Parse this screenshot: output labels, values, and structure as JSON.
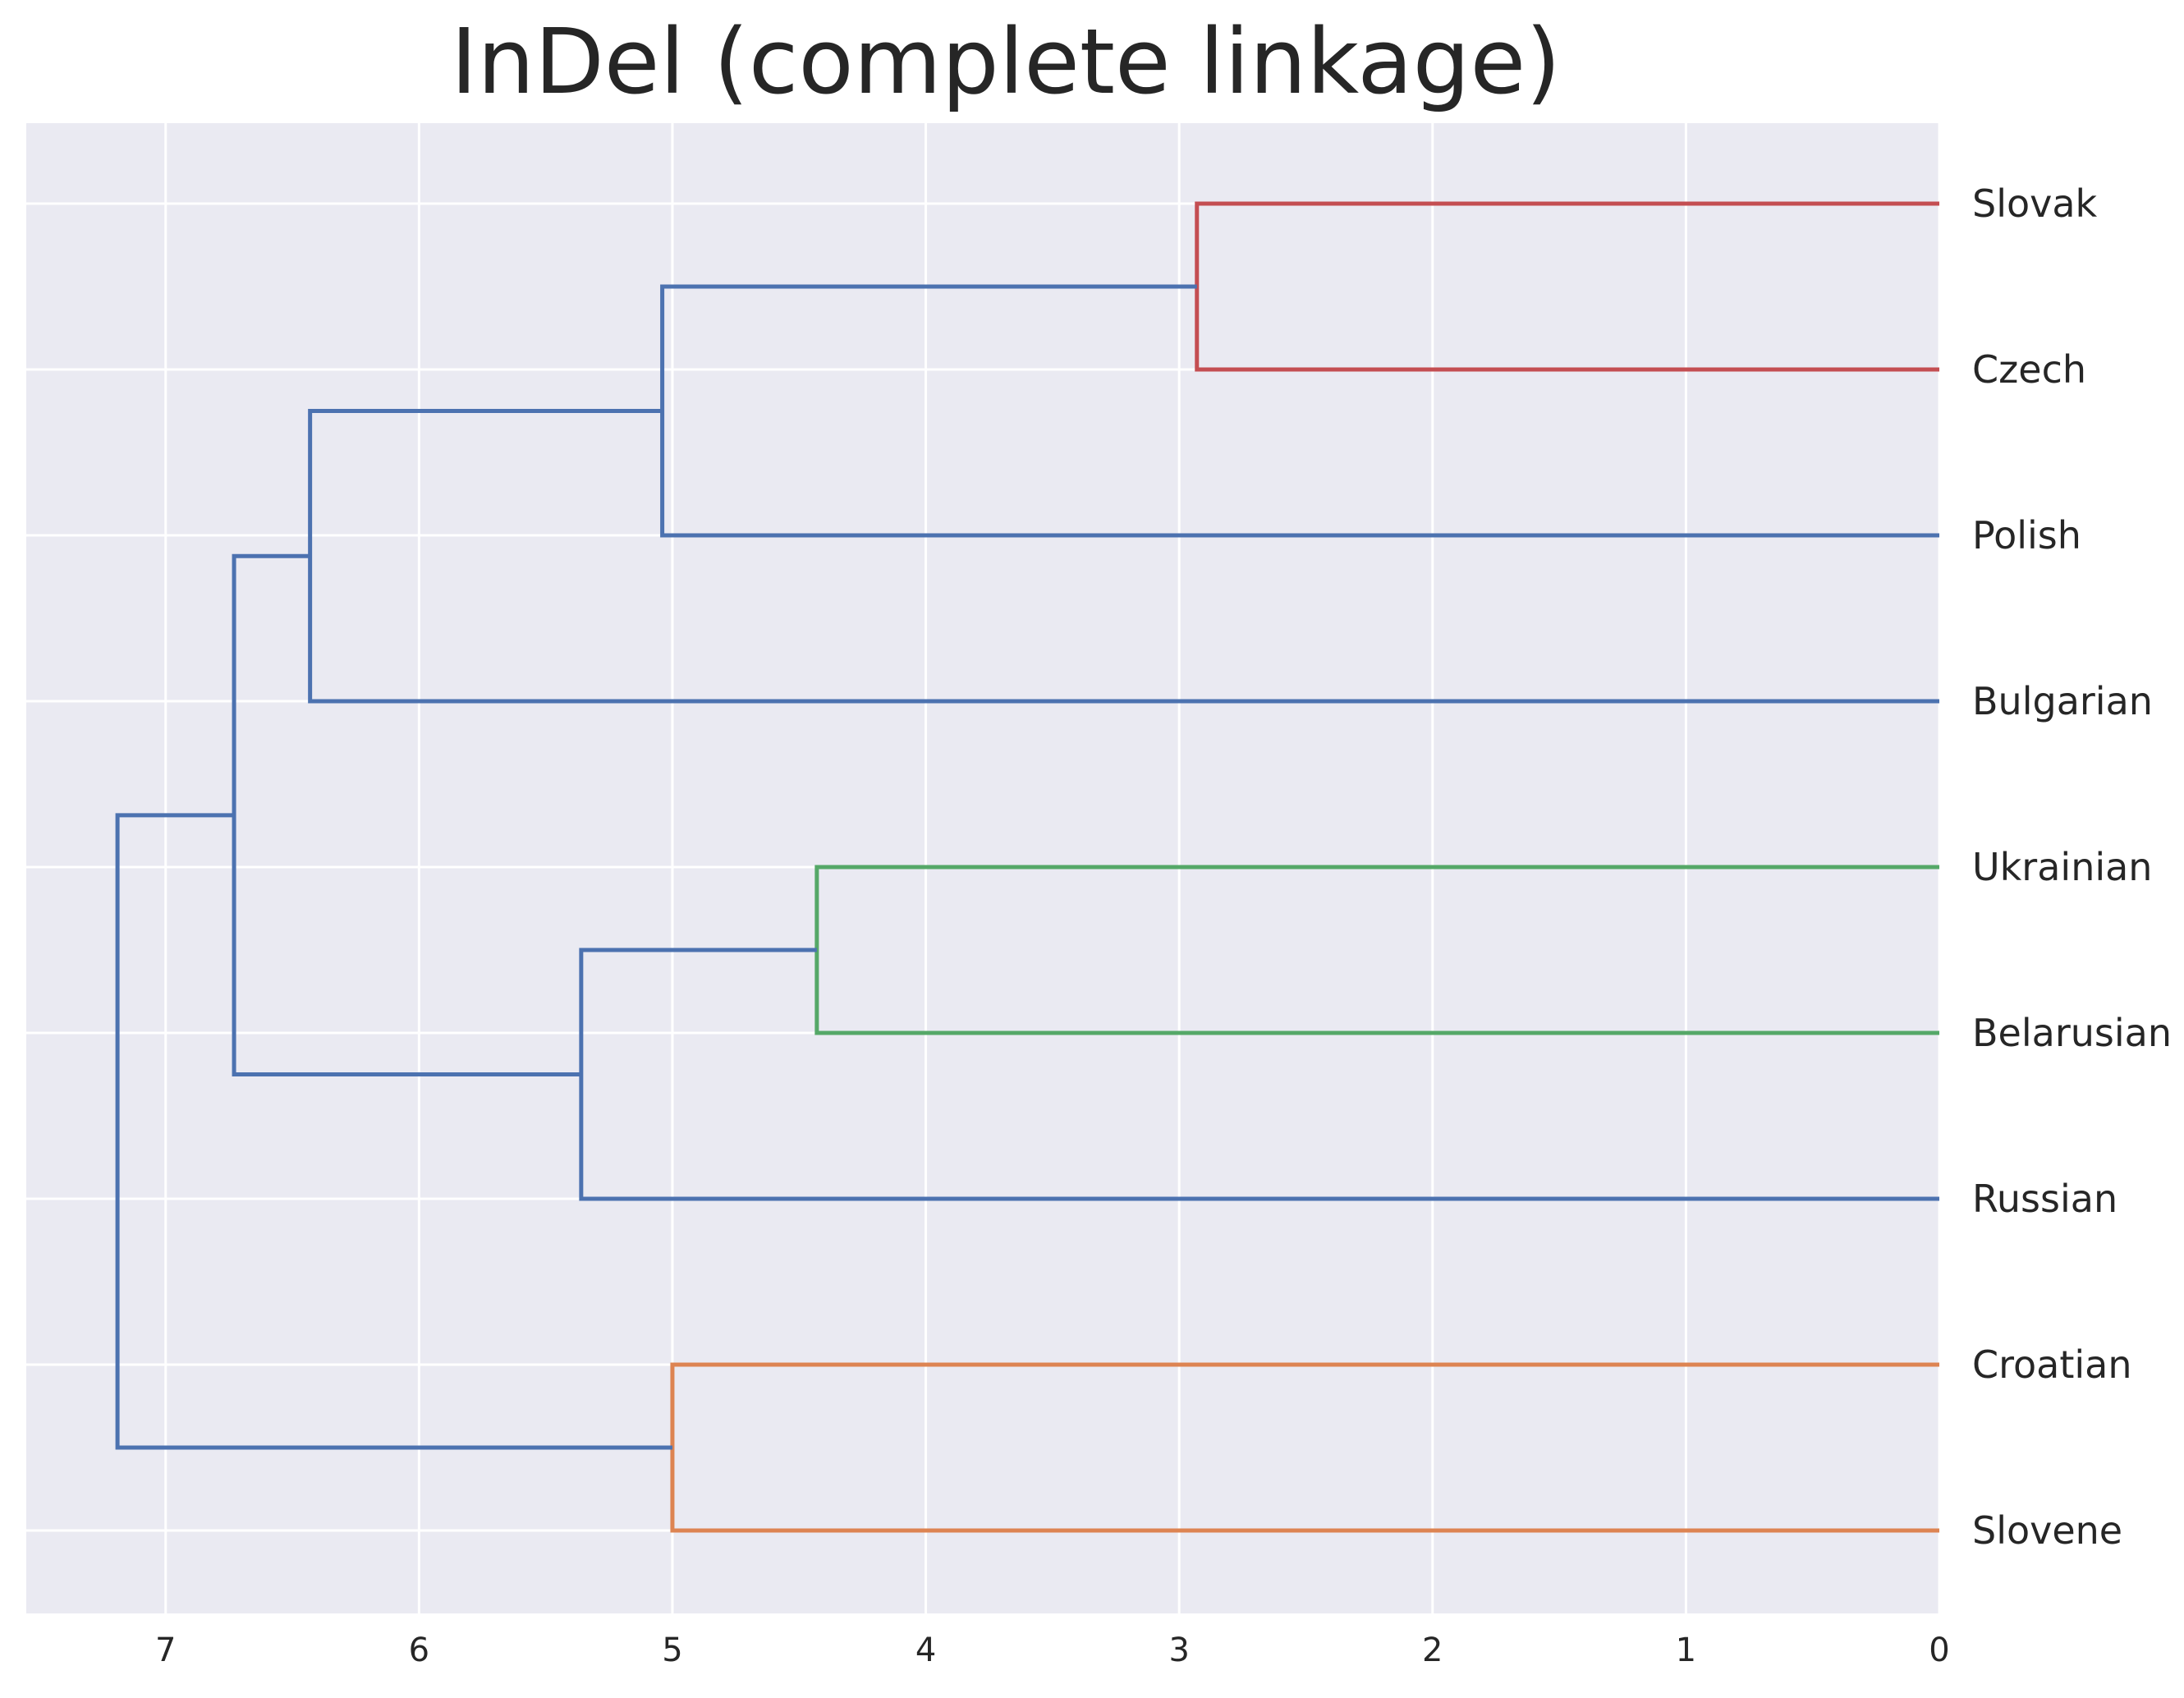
{
  "chart_data": {
    "type": "dendrogram",
    "title": "InDel (complete linkage)",
    "orientation": "right",
    "xlim": [
      7.55,
      0
    ],
    "xticks": [
      7,
      6,
      5,
      4,
      3,
      2,
      1,
      0
    ],
    "xlabel": "",
    "ylabel": "",
    "grid": true,
    "leaves": [
      "Slovak",
      "Czech",
      "Polish",
      "Bulgarian",
      "Ukrainian",
      "Belarusian",
      "Russian",
      "Croatian",
      "Slovene"
    ],
    "merges": [
      {
        "left": "Slovak",
        "right": "Czech",
        "height": 2.93,
        "color": "#c44e52"
      },
      {
        "left": "Ukrainian",
        "right": "Belarusian",
        "height": 4.43,
        "color": "#55a868"
      },
      {
        "left": "Croatian",
        "right": "Slovene",
        "height": 5.0,
        "color": "#dd8452"
      },
      {
        "left": "Slovak+Czech",
        "right": "Polish",
        "height": 5.04,
        "color": "#4c72b0"
      },
      {
        "left": "Ukrainian+Belarusian",
        "right": "Russian",
        "height": 5.36,
        "color": "#4c72b0"
      },
      {
        "left": "Slovak+Czech+Polish",
        "right": "Bulgarian",
        "height": 6.43,
        "color": "#4c72b0"
      },
      {
        "left": "Slovak+Czech+Polish+Bulgarian",
        "right": "Ukrainian+Belarusian+Russian",
        "height": 6.73,
        "color": "#4c72b0"
      },
      {
        "left": "Slovak+Czech+Polish+Bulgarian+Ukrainian+Belarusian+Russian",
        "right": "Croatian+Slovene",
        "height": 7.19,
        "color": "#4c72b0"
      }
    ],
    "colors": {
      "background": "#eaeaf2",
      "grid": "#ffffff",
      "default_link": "#4c72b0"
    }
  }
}
